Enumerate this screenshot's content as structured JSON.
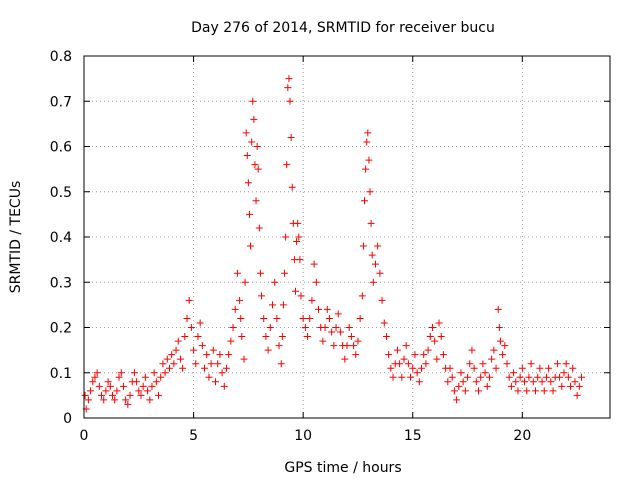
{
  "chart_data": {
    "type": "scatter",
    "title": "Day 276 of 2014, SRMTID for receiver bucu",
    "xlabel": "GPS time / hours",
    "ylabel": "SRMTID / TECUs",
    "xlim": [
      0,
      24
    ],
    "ylim": [
      0,
      0.8
    ],
    "xticks": [
      0,
      5,
      10,
      15,
      20
    ],
    "yticks": [
      0,
      0.1,
      0.2,
      0.3,
      0.4,
      0.5,
      0.6,
      0.7,
      0.8
    ],
    "xtick_labels": [
      "0",
      "5",
      "10",
      "15",
      "20"
    ],
    "ytick_labels": [
      "0",
      "0.1",
      "0.2",
      "0.3",
      "0.4",
      "0.5",
      "0.6",
      "0.7",
      "0.8"
    ],
    "grid": true,
    "marker": "plus",
    "marker_color": "#ff0000",
    "series": [
      {
        "name": "SRMTID",
        "points": [
          [
            0.05,
            0.05
          ],
          [
            0.1,
            0.02
          ],
          [
            0.2,
            0.04
          ],
          [
            0.3,
            0.06
          ],
          [
            0.4,
            0.08
          ],
          [
            0.5,
            0.09
          ],
          [
            0.6,
            0.1
          ],
          [
            0.7,
            0.07
          ],
          [
            0.8,
            0.05
          ],
          [
            0.9,
            0.04
          ],
          [
            1.0,
            0.06
          ],
          [
            1.1,
            0.08
          ],
          [
            1.2,
            0.07
          ],
          [
            1.3,
            0.05
          ],
          [
            1.4,
            0.04
          ],
          [
            1.5,
            0.06
          ],
          [
            1.6,
            0.09
          ],
          [
            1.7,
            0.1
          ],
          [
            1.8,
            0.07
          ],
          [
            1.9,
            0.04
          ],
          [
            2.0,
            0.03
          ],
          [
            2.1,
            0.05
          ],
          [
            2.2,
            0.08
          ],
          [
            2.3,
            0.1
          ],
          [
            2.4,
            0.08
          ],
          [
            2.5,
            0.06
          ],
          [
            2.6,
            0.05
          ],
          [
            2.7,
            0.07
          ],
          [
            2.8,
            0.09
          ],
          [
            2.9,
            0.06
          ],
          [
            3.0,
            0.04
          ],
          [
            3.1,
            0.07
          ],
          [
            3.2,
            0.1
          ],
          [
            3.3,
            0.08
          ],
          [
            3.4,
            0.05
          ],
          [
            3.5,
            0.09
          ],
          [
            3.6,
            0.12
          ],
          [
            3.7,
            0.1
          ],
          [
            3.8,
            0.13
          ],
          [
            3.9,
            0.11
          ],
          [
            4.0,
            0.14
          ],
          [
            4.1,
            0.12
          ],
          [
            4.2,
            0.15
          ],
          [
            4.3,
            0.17
          ],
          [
            4.4,
            0.13
          ],
          [
            4.5,
            0.11
          ],
          [
            4.6,
            0.18
          ],
          [
            4.7,
            0.22
          ],
          [
            4.8,
            0.26
          ],
          [
            4.9,
            0.2
          ],
          [
            5.0,
            0.15
          ],
          [
            5.1,
            0.12
          ],
          [
            5.2,
            0.18
          ],
          [
            5.3,
            0.21
          ],
          [
            5.4,
            0.16
          ],
          [
            5.5,
            0.11
          ],
          [
            5.6,
            0.14
          ],
          [
            5.7,
            0.09
          ],
          [
            5.8,
            0.12
          ],
          [
            5.9,
            0.15
          ],
          [
            6.0,
            0.08
          ],
          [
            6.1,
            0.12
          ],
          [
            6.2,
            0.14
          ],
          [
            6.3,
            0.1
          ],
          [
            6.4,
            0.07
          ],
          [
            6.5,
            0.11
          ],
          [
            6.6,
            0.14
          ],
          [
            6.7,
            0.17
          ],
          [
            6.8,
            0.2
          ],
          [
            6.9,
            0.24
          ],
          [
            7.0,
            0.32
          ],
          [
            7.1,
            0.26
          ],
          [
            7.15,
            0.22
          ],
          [
            7.2,
            0.18
          ],
          [
            7.3,
            0.13
          ],
          [
            7.35,
            0.3
          ],
          [
            7.4,
            0.63
          ],
          [
            7.45,
            0.58
          ],
          [
            7.5,
            0.52
          ],
          [
            7.55,
            0.45
          ],
          [
            7.6,
            0.38
          ],
          [
            7.65,
            0.61
          ],
          [
            7.7,
            0.7
          ],
          [
            7.75,
            0.66
          ],
          [
            7.8,
            0.56
          ],
          [
            7.85,
            0.48
          ],
          [
            7.9,
            0.6
          ],
          [
            7.95,
            0.55
          ],
          [
            8.0,
            0.42
          ],
          [
            8.05,
            0.32
          ],
          [
            8.1,
            0.27
          ],
          [
            8.2,
            0.22
          ],
          [
            8.3,
            0.18
          ],
          [
            8.4,
            0.15
          ],
          [
            8.5,
            0.2
          ],
          [
            8.6,
            0.25
          ],
          [
            8.7,
            0.3
          ],
          [
            8.8,
            0.22
          ],
          [
            8.9,
            0.16
          ],
          [
            9.0,
            0.12
          ],
          [
            9.05,
            0.18
          ],
          [
            9.1,
            0.25
          ],
          [
            9.15,
            0.32
          ],
          [
            9.2,
            0.4
          ],
          [
            9.25,
            0.56
          ],
          [
            9.3,
            0.73
          ],
          [
            9.35,
            0.75
          ],
          [
            9.4,
            0.7
          ],
          [
            9.45,
            0.62
          ],
          [
            9.5,
            0.51
          ],
          [
            9.55,
            0.43
          ],
          [
            9.6,
            0.35
          ],
          [
            9.65,
            0.28
          ],
          [
            9.7,
            0.39
          ],
          [
            9.75,
            0.43
          ],
          [
            9.8,
            0.4
          ],
          [
            9.85,
            0.35
          ],
          [
            9.9,
            0.27
          ],
          [
            10.0,
            0.22
          ],
          [
            10.1,
            0.2
          ],
          [
            10.2,
            0.18
          ],
          [
            10.3,
            0.22
          ],
          [
            10.4,
            0.26
          ],
          [
            10.5,
            0.34
          ],
          [
            10.6,
            0.3
          ],
          [
            10.7,
            0.24
          ],
          [
            10.8,
            0.2
          ],
          [
            10.9,
            0.17
          ],
          [
            11.0,
            0.2
          ],
          [
            11.1,
            0.24
          ],
          [
            11.2,
            0.22
          ],
          [
            11.3,
            0.19
          ],
          [
            11.4,
            0.16
          ],
          [
            11.5,
            0.2
          ],
          [
            11.6,
            0.23
          ],
          [
            11.7,
            0.19
          ],
          [
            11.8,
            0.16
          ],
          [
            11.9,
            0.13
          ],
          [
            12.0,
            0.16
          ],
          [
            12.1,
            0.2
          ],
          [
            12.2,
            0.18
          ],
          [
            12.3,
            0.16
          ],
          [
            12.4,
            0.14
          ],
          [
            12.5,
            0.17
          ],
          [
            12.6,
            0.22
          ],
          [
            12.7,
            0.27
          ],
          [
            12.75,
            0.38
          ],
          [
            12.8,
            0.48
          ],
          [
            12.85,
            0.55
          ],
          [
            12.9,
            0.61
          ],
          [
            12.95,
            0.63
          ],
          [
            13.0,
            0.57
          ],
          [
            13.05,
            0.5
          ],
          [
            13.1,
            0.43
          ],
          [
            13.15,
            0.36
          ],
          [
            13.2,
            0.3
          ],
          [
            13.3,
            0.34
          ],
          [
            13.4,
            0.38
          ],
          [
            13.5,
            0.32
          ],
          [
            13.6,
            0.26
          ],
          [
            13.7,
            0.21
          ],
          [
            13.8,
            0.18
          ],
          [
            13.9,
            0.14
          ],
          [
            14.0,
            0.11
          ],
          [
            14.1,
            0.09
          ],
          [
            14.2,
            0.12
          ],
          [
            14.3,
            0.15
          ],
          [
            14.4,
            0.12
          ],
          [
            14.5,
            0.09
          ],
          [
            14.6,
            0.13
          ],
          [
            14.7,
            0.16
          ],
          [
            14.8,
            0.12
          ],
          [
            14.9,
            0.09
          ],
          [
            15.0,
            0.11
          ],
          [
            15.1,
            0.14
          ],
          [
            15.2,
            0.1
          ],
          [
            15.3,
            0.08
          ],
          [
            15.4,
            0.11
          ],
          [
            15.5,
            0.14
          ],
          [
            15.6,
            0.12
          ],
          [
            15.7,
            0.15
          ],
          [
            15.8,
            0.18
          ],
          [
            15.9,
            0.2
          ],
          [
            16.0,
            0.17
          ],
          [
            16.1,
            0.13
          ],
          [
            16.2,
            0.21
          ],
          [
            16.3,
            0.18
          ],
          [
            16.4,
            0.14
          ],
          [
            16.5,
            0.11
          ],
          [
            16.6,
            0.08
          ],
          [
            16.7,
            0.11
          ],
          [
            16.8,
            0.09
          ],
          [
            16.9,
            0.06
          ],
          [
            17.0,
            0.04
          ],
          [
            17.1,
            0.07
          ],
          [
            17.2,
            0.1
          ],
          [
            17.3,
            0.08
          ],
          [
            17.4,
            0.06
          ],
          [
            17.5,
            0.09
          ],
          [
            17.6,
            0.12
          ],
          [
            17.7,
            0.15
          ],
          [
            17.8,
            0.11
          ],
          [
            17.9,
            0.08
          ],
          [
            18.0,
            0.06
          ],
          [
            18.1,
            0.09
          ],
          [
            18.2,
            0.12
          ],
          [
            18.3,
            0.1
          ],
          [
            18.4,
            0.07
          ],
          [
            18.5,
            0.09
          ],
          [
            18.6,
            0.13
          ],
          [
            18.7,
            0.15
          ],
          [
            18.8,
            0.11
          ],
          [
            18.9,
            0.24
          ],
          [
            18.95,
            0.2
          ],
          [
            19.0,
            0.17
          ],
          [
            19.1,
            0.14
          ],
          [
            19.2,
            0.16
          ],
          [
            19.3,
            0.12
          ],
          [
            19.4,
            0.09
          ],
          [
            19.5,
            0.07
          ],
          [
            19.6,
            0.1
          ],
          [
            19.7,
            0.08
          ],
          [
            19.8,
            0.06
          ],
          [
            19.9,
            0.09
          ],
          [
            20.0,
            0.11
          ],
          [
            20.1,
            0.08
          ],
          [
            20.2,
            0.06
          ],
          [
            20.3,
            0.09
          ],
          [
            20.4,
            0.12
          ],
          [
            20.5,
            0.08
          ],
          [
            20.6,
            0.06
          ],
          [
            20.7,
            0.09
          ],
          [
            20.8,
            0.11
          ],
          [
            20.9,
            0.08
          ],
          [
            21.0,
            0.06
          ],
          [
            21.1,
            0.09
          ],
          [
            21.2,
            0.11
          ],
          [
            21.3,
            0.08
          ],
          [
            21.4,
            0.06
          ],
          [
            21.5,
            0.09
          ],
          [
            21.6,
            0.12
          ],
          [
            21.7,
            0.09
          ],
          [
            21.8,
            0.07
          ],
          [
            21.9,
            0.1
          ],
          [
            22.0,
            0.12
          ],
          [
            22.1,
            0.09
          ],
          [
            22.2,
            0.07
          ],
          [
            22.3,
            0.11
          ],
          [
            22.4,
            0.08
          ],
          [
            22.5,
            0.05
          ],
          [
            22.6,
            0.07
          ],
          [
            22.7,
            0.09
          ]
        ]
      }
    ]
  }
}
